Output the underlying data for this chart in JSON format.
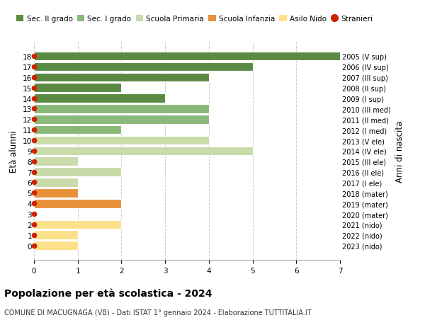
{
  "ages": [
    0,
    1,
    2,
    3,
    4,
    5,
    6,
    7,
    8,
    9,
    10,
    11,
    12,
    13,
    14,
    15,
    16,
    17,
    18
  ],
  "right_labels": [
    "2023 (nido)",
    "2022 (nido)",
    "2021 (nido)",
    "2020 (mater)",
    "2019 (mater)",
    "2018 (mater)",
    "2017 (I ele)",
    "2016 (II ele)",
    "2015 (III ele)",
    "2014 (IV ele)",
    "2013 (V ele)",
    "2012 (I med)",
    "2011 (II med)",
    "2010 (III med)",
    "2009 (I sup)",
    "2008 (II sup)",
    "2007 (III sup)",
    "2006 (IV sup)",
    "2005 (V sup)"
  ],
  "bar_values": [
    1,
    1,
    2,
    0,
    2,
    1,
    1,
    2,
    1,
    5,
    4,
    2,
    4,
    4,
    3,
    2,
    4,
    5,
    7
  ],
  "bar_colors": [
    "#fde08a",
    "#fde08a",
    "#fde08a",
    "#e8913a",
    "#e8913a",
    "#e8913a",
    "#c8dba8",
    "#c8dba8",
    "#c8dba8",
    "#c8dba8",
    "#c8dba8",
    "#8ab87a",
    "#8ab87a",
    "#8ab87a",
    "#5a8a42",
    "#5a8a42",
    "#5a8a42",
    "#5a8a42",
    "#5a8a42"
  ],
  "stranieri_ages": [
    0,
    1,
    2,
    3,
    4,
    5,
    6,
    7,
    8,
    9,
    10,
    11,
    12,
    13,
    14,
    15,
    16,
    17,
    18
  ],
  "legend_labels": [
    "Sec. II grado",
    "Sec. I grado",
    "Scuola Primaria",
    "Scuola Infanzia",
    "Asilo Nido",
    "Stranieri"
  ],
  "legend_colors": [
    "#5a8a42",
    "#8ab87a",
    "#c8dba8",
    "#e8913a",
    "#fde08a",
    "#cc2200"
  ],
  "title": "Popolazione per età scolastica - 2024",
  "subtitle": "COMUNE DI MACUGNAGA (VB) - Dati ISTAT 1° gennaio 2024 - Elaborazione TUTTITALIA.IT",
  "ylabel": "Età alunni",
  "right_ylabel": "Anni di nascita",
  "xlim": [
    0,
    7
  ],
  "bg_color": "#ffffff",
  "grid_color": "#cccccc",
  "bar_height": 0.85
}
